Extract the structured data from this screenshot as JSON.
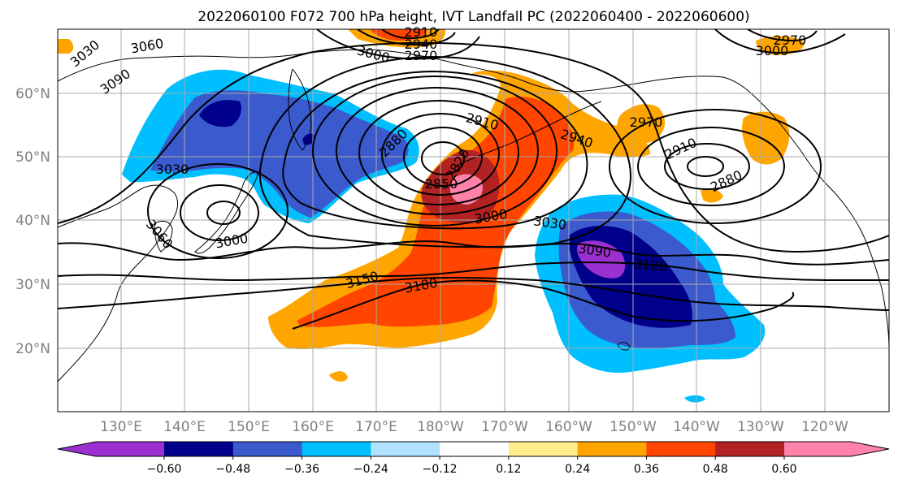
{
  "title": "2022060100 F072 700 hPa height, IVT Landfall PC (2022060400 - 2022060600)",
  "lat_labels": [
    "60°N",
    "50°N",
    "40°N",
    "30°N",
    "20°N"
  ],
  "lon_labels": [
    "130°E",
    "140°E",
    "150°E",
    "160°E",
    "170°E",
    "180°W",
    "170°W",
    "160°W",
    "150°W",
    "140°W",
    "130°W",
    "120°W"
  ],
  "colorbar": {
    "ticks": [
      "-0.60",
      "-0.48",
      "-0.36",
      "-0.24",
      "-0.12",
      "0.12",
      "0.24",
      "0.36",
      "0.48",
      "0.60"
    ],
    "colors": [
      "#9b30d0",
      "#00008b",
      "#3a5acd",
      "#00bfff",
      "#b0e2ff",
      "#ffffff",
      "#ffec8b",
      "#ffa500",
      "#ff4500",
      "#b22222",
      "#ff82ab"
    ]
  },
  "contour_labels": [
    "3030",
    "3060",
    "3090",
    "2910",
    "2940",
    "2970",
    "3000",
    "3000",
    "2970",
    "2880",
    "2910",
    "2940",
    "2850",
    "2820",
    "2970",
    "2910",
    "2880",
    "3030",
    "3060",
    "3000",
    "3000",
    "3030",
    "3090",
    "3120",
    "3150",
    "3180"
  ]
}
